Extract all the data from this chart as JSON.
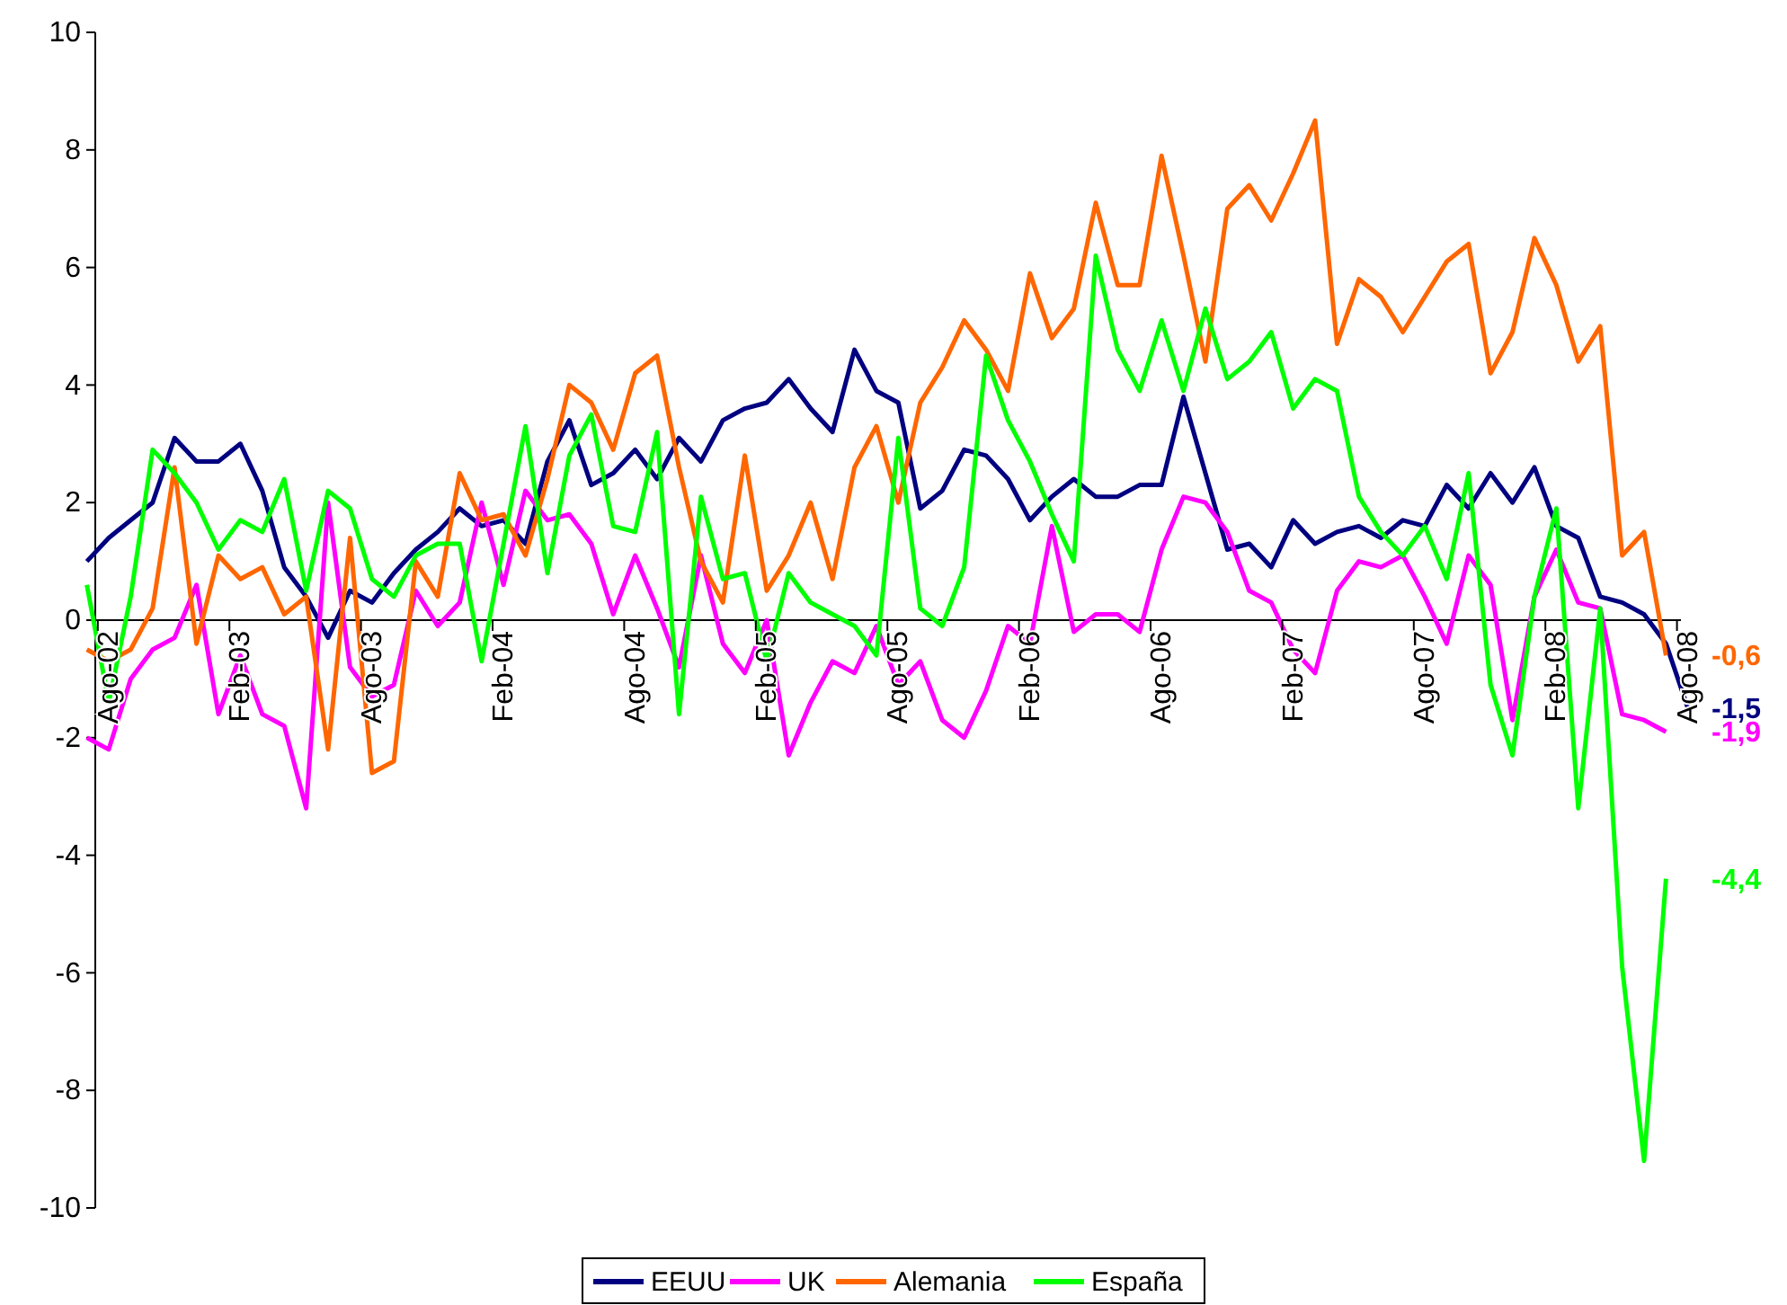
{
  "chart_data": {
    "type": "line",
    "categories": [
      null,
      "Ago-02",
      null,
      null,
      null,
      null,
      null,
      "Feb-03",
      null,
      null,
      null,
      null,
      null,
      "Ago-03",
      null,
      null,
      null,
      null,
      null,
      "Feb-04",
      null,
      null,
      null,
      null,
      null,
      "Ago-04",
      null,
      null,
      null,
      null,
      null,
      "Feb-05",
      null,
      null,
      null,
      null,
      null,
      "Ago-05",
      null,
      null,
      null,
      null,
      null,
      "Feb-06",
      null,
      null,
      null,
      null,
      null,
      "Ago-06",
      null,
      null,
      null,
      null,
      null,
      "Feb-07",
      null,
      null,
      null,
      null,
      null,
      "Ago-07",
      null,
      null,
      null,
      null,
      null,
      "Feb-08",
      null,
      null,
      null,
      null,
      null,
      "Ago-08"
    ],
    "ylim": [
      -10,
      10
    ],
    "yticks": [
      -10,
      -8,
      -6,
      -4,
      -2,
      0,
      2,
      4,
      6,
      8,
      10
    ],
    "legend": "bottom",
    "series": [
      {
        "name": "EEUU",
        "color": "#000080",
        "values": [
          1.0,
          1.4,
          1.7,
          2.0,
          3.1,
          2.7,
          2.7,
          3.0,
          2.2,
          0.9,
          0.4,
          -0.3,
          0.5,
          0.3,
          0.8,
          1.2,
          1.5,
          1.9,
          1.6,
          1.7,
          1.3,
          2.7,
          3.4,
          2.3,
          2.5,
          2.9,
          2.4,
          3.1,
          2.7,
          3.4,
          3.6,
          3.7,
          4.1,
          3.6,
          3.2,
          4.6,
          3.9,
          3.7,
          1.9,
          2.2,
          2.9,
          2.8,
          2.4,
          1.7,
          2.1,
          2.4,
          2.1,
          2.1,
          2.3,
          2.3,
          3.8,
          2.5,
          1.2,
          1.3,
          0.9,
          1.7,
          1.3,
          1.5,
          1.6,
          1.4,
          1.7,
          1.6,
          2.3,
          1.9,
          2.5,
          2.0,
          2.6,
          1.6,
          1.4,
          0.4,
          0.3,
          0.1,
          -0.4,
          -1.5
        ],
        "value_labels": [
          null,
          null,
          null,
          null,
          null,
          null,
          null,
          null,
          null,
          null,
          null,
          null,
          null,
          null,
          null,
          null,
          null,
          null,
          null,
          null,
          null,
          null,
          null,
          null,
          null,
          null,
          null,
          null,
          null,
          null,
          null,
          null,
          null,
          null,
          null,
          null,
          null,
          null,
          null,
          null,
          null,
          null,
          null,
          null,
          null,
          null,
          null,
          null,
          null,
          null,
          null,
          null,
          null,
          null,
          null,
          null,
          null,
          null,
          null,
          null,
          null,
          null,
          null,
          null,
          null,
          null,
          null,
          null,
          null,
          null,
          null,
          null,
          null,
          "-1,5"
        ]
      },
      {
        "name": "UK",
        "color": "#ff00ff",
        "values": [
          -2.0,
          -2.2,
          -1.0,
          -0.5,
          -0.3,
          0.6,
          -1.6,
          -0.6,
          -1.6,
          -1.8,
          -3.2,
          2.0,
          -0.8,
          -1.3,
          -1.1,
          0.5,
          -0.1,
          0.3,
          2.0,
          0.6,
          2.2,
          1.7,
          1.8,
          1.3,
          0.1,
          1.1,
          0.2,
          -0.8,
          1.1,
          -0.4,
          -0.9,
          0.0,
          -2.3,
          -1.4,
          -0.7,
          -0.9,
          -0.1,
          -1.1,
          -0.7,
          -1.7,
          -2.0,
          -1.2,
          -0.1,
          -0.4,
          1.6,
          -0.2,
          0.1,
          0.1,
          -0.2,
          1.2,
          2.1,
          2.0,
          1.5,
          0.5,
          0.3,
          -0.5,
          -0.9,
          0.5,
          1.0,
          0.9,
          1.1,
          0.4,
          -0.4,
          1.1,
          0.6,
          -1.7,
          0.4,
          1.2,
          0.3,
          0.2,
          -1.6,
          -1.7,
          -1.9,
          null
        ],
        "value_labels": [
          null,
          null,
          null,
          null,
          null,
          null,
          null,
          null,
          null,
          null,
          null,
          null,
          null,
          null,
          null,
          null,
          null,
          null,
          null,
          null,
          null,
          null,
          null,
          null,
          null,
          null,
          null,
          null,
          null,
          null,
          null,
          null,
          null,
          null,
          null,
          null,
          null,
          null,
          null,
          null,
          null,
          null,
          null,
          null,
          null,
          null,
          null,
          null,
          null,
          null,
          null,
          null,
          null,
          null,
          null,
          null,
          null,
          null,
          null,
          null,
          null,
          null,
          null,
          null,
          null,
          null,
          null,
          null,
          null,
          null,
          null,
          null,
          "-1,9",
          null
        ]
      },
      {
        "name": "Alemania",
        "color": "#ff6600",
        "values": [
          -0.5,
          -0.7,
          -0.5,
          0.2,
          2.6,
          -0.4,
          1.1,
          0.7,
          0.9,
          0.1,
          0.4,
          -2.2,
          1.4,
          -2.6,
          -2.4,
          1.0,
          0.4,
          2.5,
          1.7,
          1.8,
          1.1,
          2.4,
          4.0,
          3.7,
          2.9,
          4.2,
          4.5,
          2.6,
          1.0,
          0.3,
          2.8,
          0.5,
          1.1,
          2.0,
          0.7,
          2.6,
          3.3,
          2.0,
          3.7,
          4.3,
          5.1,
          4.6,
          3.9,
          5.9,
          4.8,
          5.3,
          7.1,
          5.7,
          5.7,
          7.9,
          6.2,
          4.4,
          7.0,
          7.4,
          6.8,
          7.6,
          8.5,
          4.7,
          5.8,
          5.5,
          4.9,
          5.5,
          6.1,
          6.4,
          4.2,
          4.9,
          6.5,
          5.7,
          4.4,
          5.0,
          1.1,
          1.5,
          -0.6,
          null
        ],
        "value_labels": [
          null,
          null,
          null,
          null,
          null,
          null,
          null,
          null,
          null,
          null,
          null,
          null,
          null,
          null,
          null,
          null,
          null,
          null,
          null,
          null,
          null,
          null,
          null,
          null,
          null,
          null,
          null,
          null,
          null,
          null,
          null,
          null,
          null,
          null,
          null,
          null,
          null,
          null,
          null,
          null,
          null,
          null,
          null,
          null,
          null,
          null,
          null,
          null,
          null,
          null,
          null,
          null,
          null,
          null,
          null,
          null,
          null,
          null,
          null,
          null,
          null,
          null,
          null,
          null,
          null,
          null,
          null,
          null,
          null,
          null,
          null,
          null,
          "-0,6",
          null
        ]
      },
      {
        "name": "España",
        "color": "#00ff00",
        "values": [
          0.6,
          -1.4,
          0.4,
          2.9,
          2.5,
          2.0,
          1.2,
          1.7,
          1.5,
          2.4,
          0.5,
          2.2,
          1.9,
          0.7,
          0.4,
          1.1,
          1.3,
          1.3,
          -0.7,
          1.3,
          3.3,
          0.8,
          2.8,
          3.5,
          1.6,
          1.5,
          3.2,
          -1.6,
          2.1,
          0.7,
          0.8,
          -0.7,
          0.8,
          0.3,
          0.1,
          -0.1,
          -0.6,
          3.1,
          0.2,
          -0.1,
          0.9,
          4.5,
          3.4,
          2.7,
          1.8,
          1.0,
          6.2,
          4.6,
          3.9,
          5.1,
          3.9,
          5.3,
          4.1,
          4.4,
          4.9,
          3.6,
          4.1,
          3.9,
          2.1,
          1.5,
          1.1,
          1.6,
          0.7,
          2.5,
          -1.1,
          -2.3,
          0.4,
          1.9,
          -3.2,
          0.2,
          -5.9,
          -9.2,
          -4.4,
          null
        ],
        "value_labels": [
          null,
          null,
          null,
          null,
          null,
          null,
          null,
          null,
          null,
          null,
          null,
          null,
          null,
          null,
          null,
          null,
          null,
          null,
          null,
          null,
          null,
          null,
          null,
          null,
          null,
          null,
          null,
          null,
          null,
          null,
          null,
          null,
          null,
          null,
          null,
          null,
          null,
          null,
          null,
          null,
          null,
          null,
          null,
          null,
          null,
          null,
          null,
          null,
          null,
          null,
          null,
          null,
          null,
          null,
          null,
          null,
          null,
          null,
          null,
          null,
          null,
          null,
          null,
          null,
          null,
          null,
          null,
          null,
          null,
          null,
          null,
          null,
          "-4,4",
          null
        ]
      }
    ]
  }
}
